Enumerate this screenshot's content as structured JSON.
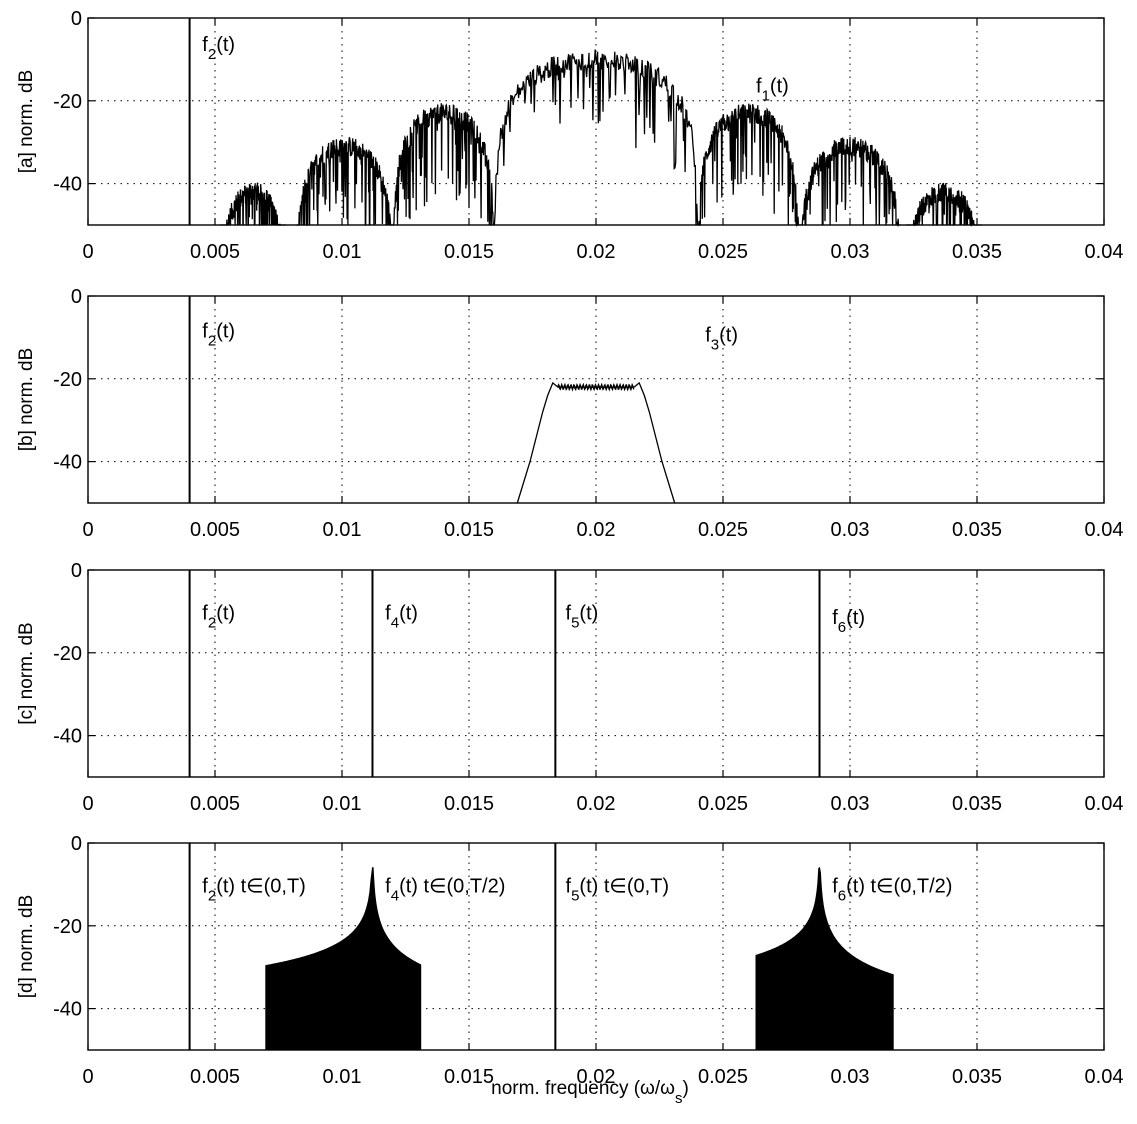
{
  "figure": {
    "xlabel_main": "norm. frequency (ω/ω",
    "xlabel_sub": "s",
    "xlabel_close": ")"
  },
  "chart_data": [
    {
      "type": "line",
      "panel_label": "[a] norm. dB",
      "xlim": [
        0,
        0.04
      ],
      "ylim": [
        -50,
        0
      ],
      "xticks": [
        "0",
        "0.005",
        "0.01",
        "0.015",
        "0.02",
        "0.025",
        "0.03",
        "0.035",
        "0.04"
      ],
      "yticks": [
        "0",
        "-20",
        "-40"
      ],
      "grid": true,
      "annotations": [
        {
          "base": "f",
          "sub": "2",
          "rest": "(t)",
          "x": 0.0045,
          "y": -8
        },
        {
          "base": "f",
          "sub": "1",
          "rest": "(t)",
          "x": 0.0263,
          "y": -18
        }
      ],
      "series": [
        {
          "kind": "impulse",
          "x": 0.004,
          "peak": 0
        },
        {
          "kind": "lobes",
          "lobes": [
            {
              "x0": 0.0052,
              "x1": 0.0078,
              "peak": -42
            },
            {
              "x0": 0.0082,
              "x1": 0.012,
              "peak": -31
            },
            {
              "x0": 0.012,
              "x1": 0.016,
              "peak": -23
            },
            {
              "x0": 0.016,
              "x1": 0.024,
              "peak": -10
            },
            {
              "x0": 0.024,
              "x1": 0.028,
              "peak": -23
            },
            {
              "x0": 0.028,
              "x1": 0.032,
              "peak": -31
            },
            {
              "x0": 0.0322,
              "x1": 0.0352,
              "peak": -42
            }
          ]
        }
      ]
    },
    {
      "type": "line",
      "panel_label": "[b] norm. dB",
      "xlim": [
        0,
        0.04
      ],
      "ylim": [
        -50,
        0
      ],
      "xticks": [
        "0",
        "0.005",
        "0.01",
        "0.015",
        "0.02",
        "0.025",
        "0.03",
        "0.035",
        "0.04"
      ],
      "yticks": [
        "0",
        "-20",
        "-40"
      ],
      "grid": true,
      "annotations": [
        {
          "base": "f",
          "sub": "2",
          "rest": "(t)",
          "x": 0.0045,
          "y": -10
        },
        {
          "base": "f",
          "sub": "3",
          "rest": "(t)",
          "x": 0.0243,
          "y": -11
        }
      ],
      "series": [
        {
          "kind": "impulse",
          "x": 0.004,
          "peak": 0
        },
        {
          "kind": "band",
          "x": [
            0.0169,
            0.0174,
            0.0179,
            0.0181,
            0.0183,
            0.0185,
            0.0215,
            0.0217,
            0.0219,
            0.0221,
            0.0226,
            0.0231
          ],
          "y": [
            -50,
            -40,
            -28,
            -24,
            -21,
            -22,
            -22,
            -21,
            -24,
            -28,
            -40,
            -50
          ]
        }
      ]
    },
    {
      "type": "line",
      "panel_label": "[c] norm. dB",
      "xlim": [
        0,
        0.04
      ],
      "ylim": [
        -50,
        0
      ],
      "xticks": [
        "0",
        "0.005",
        "0.01",
        "0.015",
        "0.02",
        "0.025",
        "0.03",
        "0.035",
        "0.04"
      ],
      "yticks": [
        "0",
        "-20",
        "-40"
      ],
      "grid": true,
      "annotations": [
        {
          "base": "f",
          "sub": "2",
          "rest": "(t)",
          "x": 0.0045,
          "y": -12
        },
        {
          "base": "f",
          "sub": "4",
          "rest": "(t)",
          "x": 0.0117,
          "y": -12
        },
        {
          "base": "f",
          "sub": "5",
          "rest": "(t)",
          "x": 0.0188,
          "y": -12
        },
        {
          "base": "f",
          "sub": "6",
          "rest": "(t)",
          "x": 0.0293,
          "y": -13
        }
      ],
      "series": [
        {
          "kind": "impulse",
          "x": 0.004,
          "peak": 0
        },
        {
          "kind": "impulse",
          "x": 0.0112,
          "peak": 0
        },
        {
          "kind": "impulse",
          "x": 0.0184,
          "peak": 0
        },
        {
          "kind": "impulse",
          "x": 0.0288,
          "peak": 0
        }
      ]
    },
    {
      "type": "line",
      "panel_label": "[d] norm. dB",
      "xlim": [
        0,
        0.04
      ],
      "ylim": [
        -50,
        0
      ],
      "xticks": [
        "0",
        "0.005",
        "0.01",
        "0.015",
        "0.02",
        "0.025",
        "0.03",
        "0.035",
        "0.04"
      ],
      "yticks": [
        "0",
        "-20",
        "-40"
      ],
      "grid": true,
      "annotations": [
        {
          "base": "f",
          "sub": "2",
          "rest": "(t)  t∈(0,T)",
          "x": 0.0045,
          "y": -12
        },
        {
          "base": "f",
          "sub": "4",
          "rest": "(t)  t∈(0,T/2)",
          "x": 0.0117,
          "y": -12
        },
        {
          "base": "f",
          "sub": "5",
          "rest": "(t)  t∈(0,T)",
          "x": 0.0188,
          "y": -12
        },
        {
          "base": "f",
          "sub": "6",
          "rest": "(t)  t∈(0,T/2)",
          "x": 0.0293,
          "y": -12
        }
      ],
      "series": [
        {
          "kind": "impulse",
          "x": 0.004,
          "peak": 0
        },
        {
          "kind": "impulse",
          "x": 0.0184,
          "peak": 0
        },
        {
          "kind": "cusp",
          "center": 0.0112,
          "peak": -6,
          "x0": 0.007,
          "x1": 0.0131
        },
        {
          "kind": "cusp",
          "center": 0.0288,
          "peak": -6,
          "x0": 0.0263,
          "x1": 0.0317
        }
      ]
    }
  ]
}
